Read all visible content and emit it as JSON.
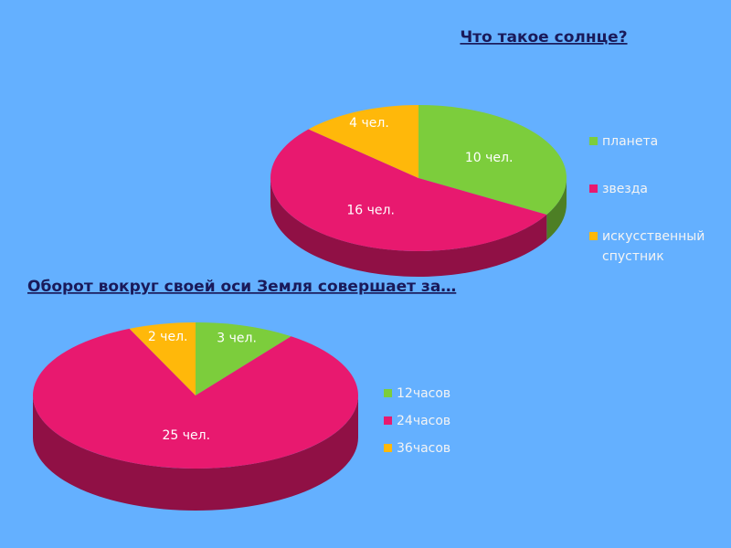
{
  "chart_data": [
    {
      "type": "pie",
      "title": "Что такое солнце?",
      "categories": [
        "планета",
        "звезда",
        "искусственный спустник"
      ],
      "values": [
        10,
        16,
        4
      ],
      "value_labels": [
        "10 чел.",
        "16 чел.",
        "4 чел."
      ],
      "colors": [
        "#7ccd3c",
        "#e8196f",
        "#ffb80a"
      ]
    },
    {
      "type": "pie",
      "title": "Оборот вокруг своей оси Земля совершает за…",
      "categories": [
        "12часов",
        "24часов",
        "36часов"
      ],
      "values": [
        3,
        25,
        2
      ],
      "value_labels": [
        "3 чел.",
        "25 чел.",
        "2 чел."
      ],
      "colors": [
        "#7ccd3c",
        "#e8196f",
        "#ffb80a"
      ]
    }
  ]
}
